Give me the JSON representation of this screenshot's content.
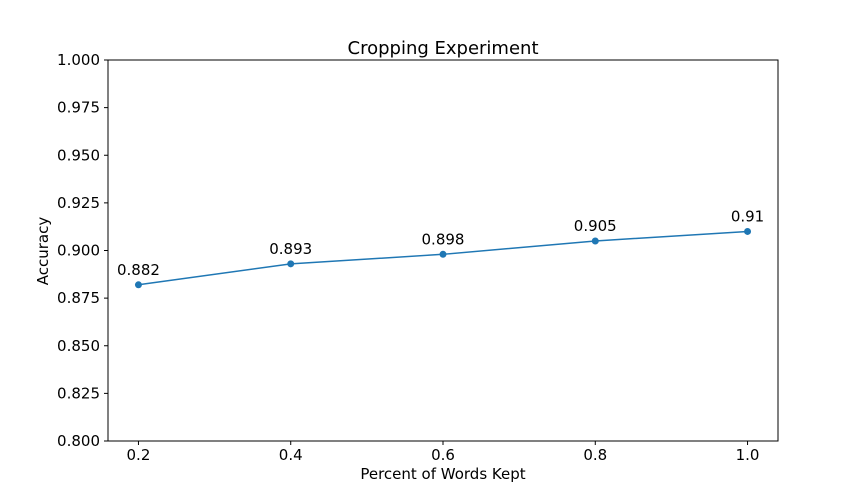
{
  "chart_data": {
    "type": "line",
    "title": "Cropping Experiment",
    "xlabel": "Percent of Words Kept",
    "ylabel": "Accuracy",
    "x": [
      0.2,
      0.4,
      0.6,
      0.8,
      1.0
    ],
    "series": [
      {
        "values": [
          0.882,
          0.893,
          0.898,
          0.905,
          0.91
        ],
        "color": "#1f77b4"
      }
    ],
    "data_labels": [
      "0.882",
      "0.893",
      "0.898",
      "0.905",
      "0.91"
    ],
    "xticks": [
      0.2,
      0.4,
      0.6,
      0.8,
      1.0
    ],
    "xtick_labels": [
      "0.2",
      "0.4",
      "0.6",
      "0.8",
      "1.0"
    ],
    "ylim": [
      0.8,
      1.0
    ],
    "yticks": [
      0.8,
      0.825,
      0.85,
      0.875,
      0.9,
      0.925,
      0.95,
      0.975,
      1.0
    ],
    "ytick_labels": [
      "0.800",
      "0.825",
      "0.850",
      "0.875",
      "0.900",
      "0.925",
      "0.950",
      "0.975",
      "1.000"
    ],
    "xlim": [
      0.16,
      1.04
    ],
    "grid": false,
    "legend": "none"
  }
}
